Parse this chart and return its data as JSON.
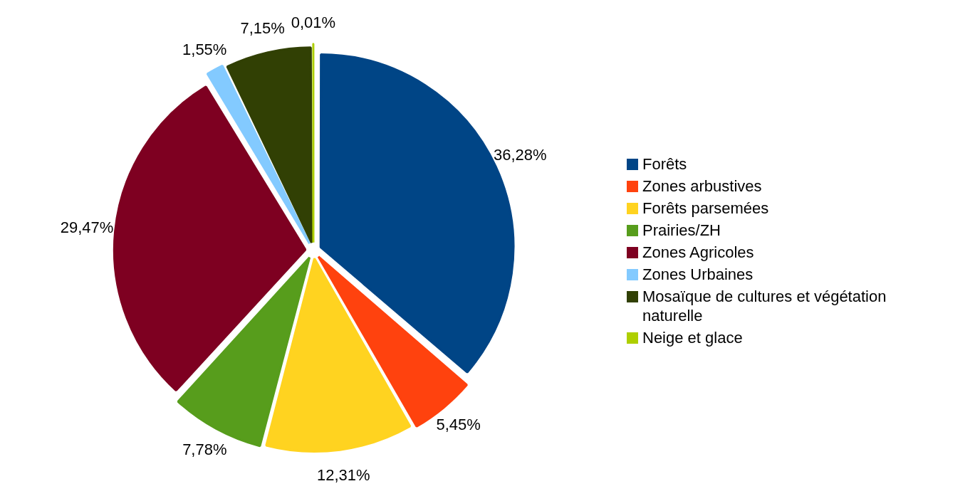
{
  "chart_data": {
    "type": "pie",
    "categories": [
      "Forêts",
      "Zones arbustives",
      "Forêts parsemées",
      "Prairies/ZH",
      "Zones Agricoles",
      "Zones Urbaines",
      "Mosaïque de cultures et végétation naturelle",
      "Neige et glace"
    ],
    "values": [
      36.28,
      5.45,
      12.31,
      7.78,
      29.47,
      1.55,
      7.15,
      0.01
    ],
    "colors": [
      "#004586",
      "#ff420e",
      "#ffd320",
      "#579d1c",
      "#7e0021",
      "#83caff",
      "#314004",
      "#aecf00"
    ],
    "value_labels": [
      "36,28%",
      "5,45%",
      "12,31%",
      "7,78%",
      "29,47%",
      "1,55%",
      "7,15%",
      "0,01%"
    ],
    "legend": "right"
  }
}
